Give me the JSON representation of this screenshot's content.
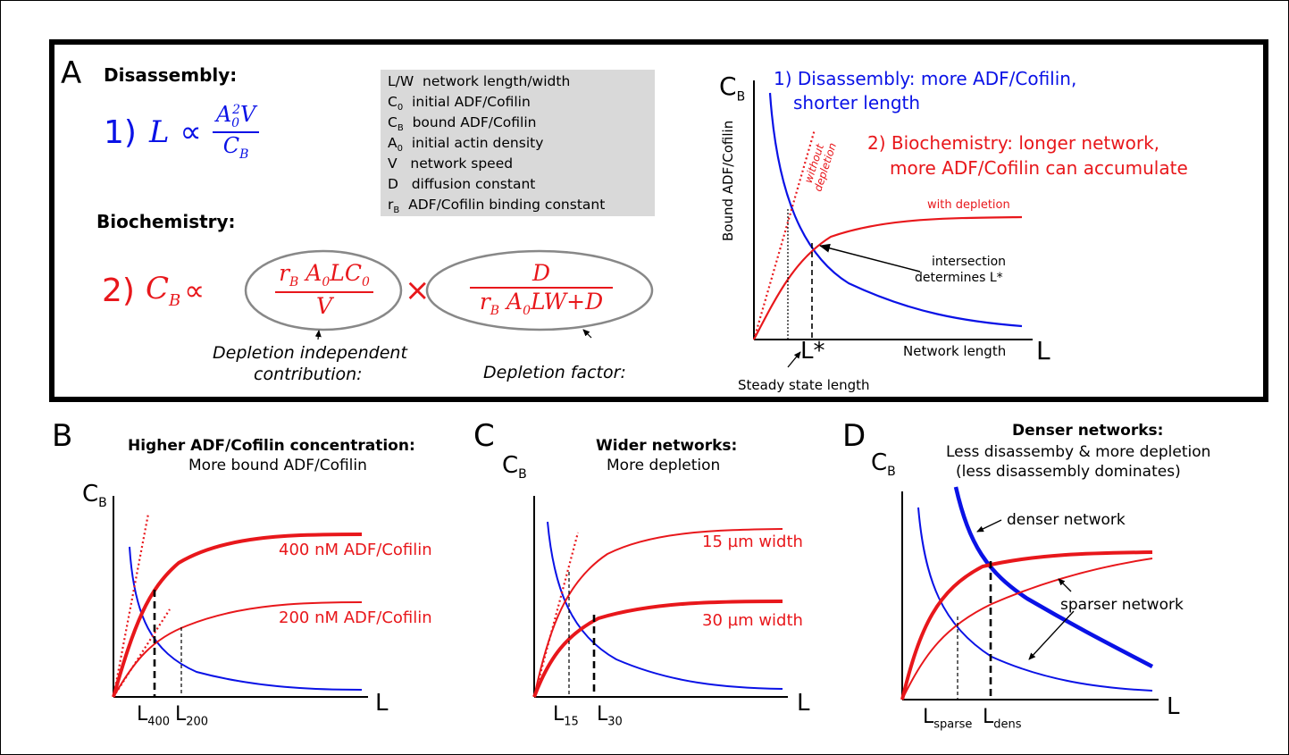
{
  "panel_a": {
    "label": "A",
    "disassembly_header": "Disassembly:",
    "biochem_header": "Biochemistry:",
    "eq1": {
      "num": "1)",
      "lhs": "L",
      "rel": "∝",
      "frac_num_base": "A",
      "frac_num_sub": "0",
      "frac_num_sup": "2",
      "frac_num_rest": "V",
      "frac_den_base": "C",
      "frac_den_sub": "B"
    },
    "eq2": {
      "num": "2)",
      "lhs_base": "C",
      "lhs_sub": "B",
      "rel": "∝",
      "times": "×",
      "f1_num": "r_B A_0 L C_0",
      "f1_den": "V",
      "f2_num": "D",
      "f2_den": "r_B A_0 L W + D"
    },
    "note_left_1": "Depletion independent",
    "note_left_2": "contribution:",
    "note_right": "Depletion factor:",
    "legend": [
      {
        "sym": "L/W",
        "desc": "network length/width"
      },
      {
        "sym": "C",
        "sub": "0",
        "desc": "initial ADF/Cofilin"
      },
      {
        "sym": "C",
        "sub": "B",
        "desc": "bound ADF/Cofilin"
      },
      {
        "sym": "A",
        "sub": "0",
        "desc": "initial actin density"
      },
      {
        "sym": "V",
        "desc": "network speed"
      },
      {
        "sym": "D",
        "desc": "diffusion constant"
      },
      {
        "sym": "r",
        "sub": "B",
        "desc": "ADF/Cofilin binding constant"
      }
    ],
    "graph": {
      "ylabel_main": "C",
      "ylabel_sub": "B",
      "yaxis_title": "Bound ADF/Cofilin",
      "xlabel_main": "L",
      "xaxis_title": "Network length",
      "blue_1": "1) Disassembly: more ADF/Cofilin,",
      "blue_2": "shorter length",
      "red_1": "2) Biochemistry: longer network,",
      "red_2": "more ADF/Cofilin can accumulate",
      "without_1": "without",
      "without_2": "depletion",
      "with_dep": "with depletion",
      "intersect_1": "intersection",
      "intersect_2": "determines L*",
      "lstar": "L*",
      "steady": "Steady state length"
    }
  },
  "panel_b": {
    "label": "B",
    "title": "Higher ADF/Cofilin concentration:",
    "subtitle": "More bound ADF/Cofilin",
    "y_main": "C",
    "y_sub": "B",
    "x_main": "L",
    "curve_400": "400 nM ADF/Cofilin",
    "curve_200": "200 nM ADF/Cofilin",
    "tick1_main": "L",
    "tick1_sub": "400",
    "tick2_main": "L",
    "tick2_sub": "200"
  },
  "panel_c": {
    "label": "C",
    "title": "Wider networks:",
    "subtitle": "More depletion",
    "y_main": "C",
    "y_sub": "B",
    "x_main": "L",
    "curve_15": "15 µm width",
    "curve_30": "30 µm width",
    "tick1_main": "L",
    "tick1_sub": "15",
    "tick2_main": "L",
    "tick2_sub": "30"
  },
  "panel_d": {
    "label": "D",
    "title": "Denser networks:",
    "subtitle_1": "Less disassemby & more depletion",
    "subtitle_2": "(less disassembly dominates)",
    "y_main": "C",
    "y_sub": "B",
    "x_main": "L",
    "denser": "denser network",
    "sparser": "sparser network",
    "tick1_main": "L",
    "tick1_sub": "sparse",
    "tick2_main": "L",
    "tick2_sub": "dens"
  },
  "colors": {
    "blue": "#0a12e6",
    "red": "#e8171b",
    "legend_bg": "#d9d9d9"
  }
}
